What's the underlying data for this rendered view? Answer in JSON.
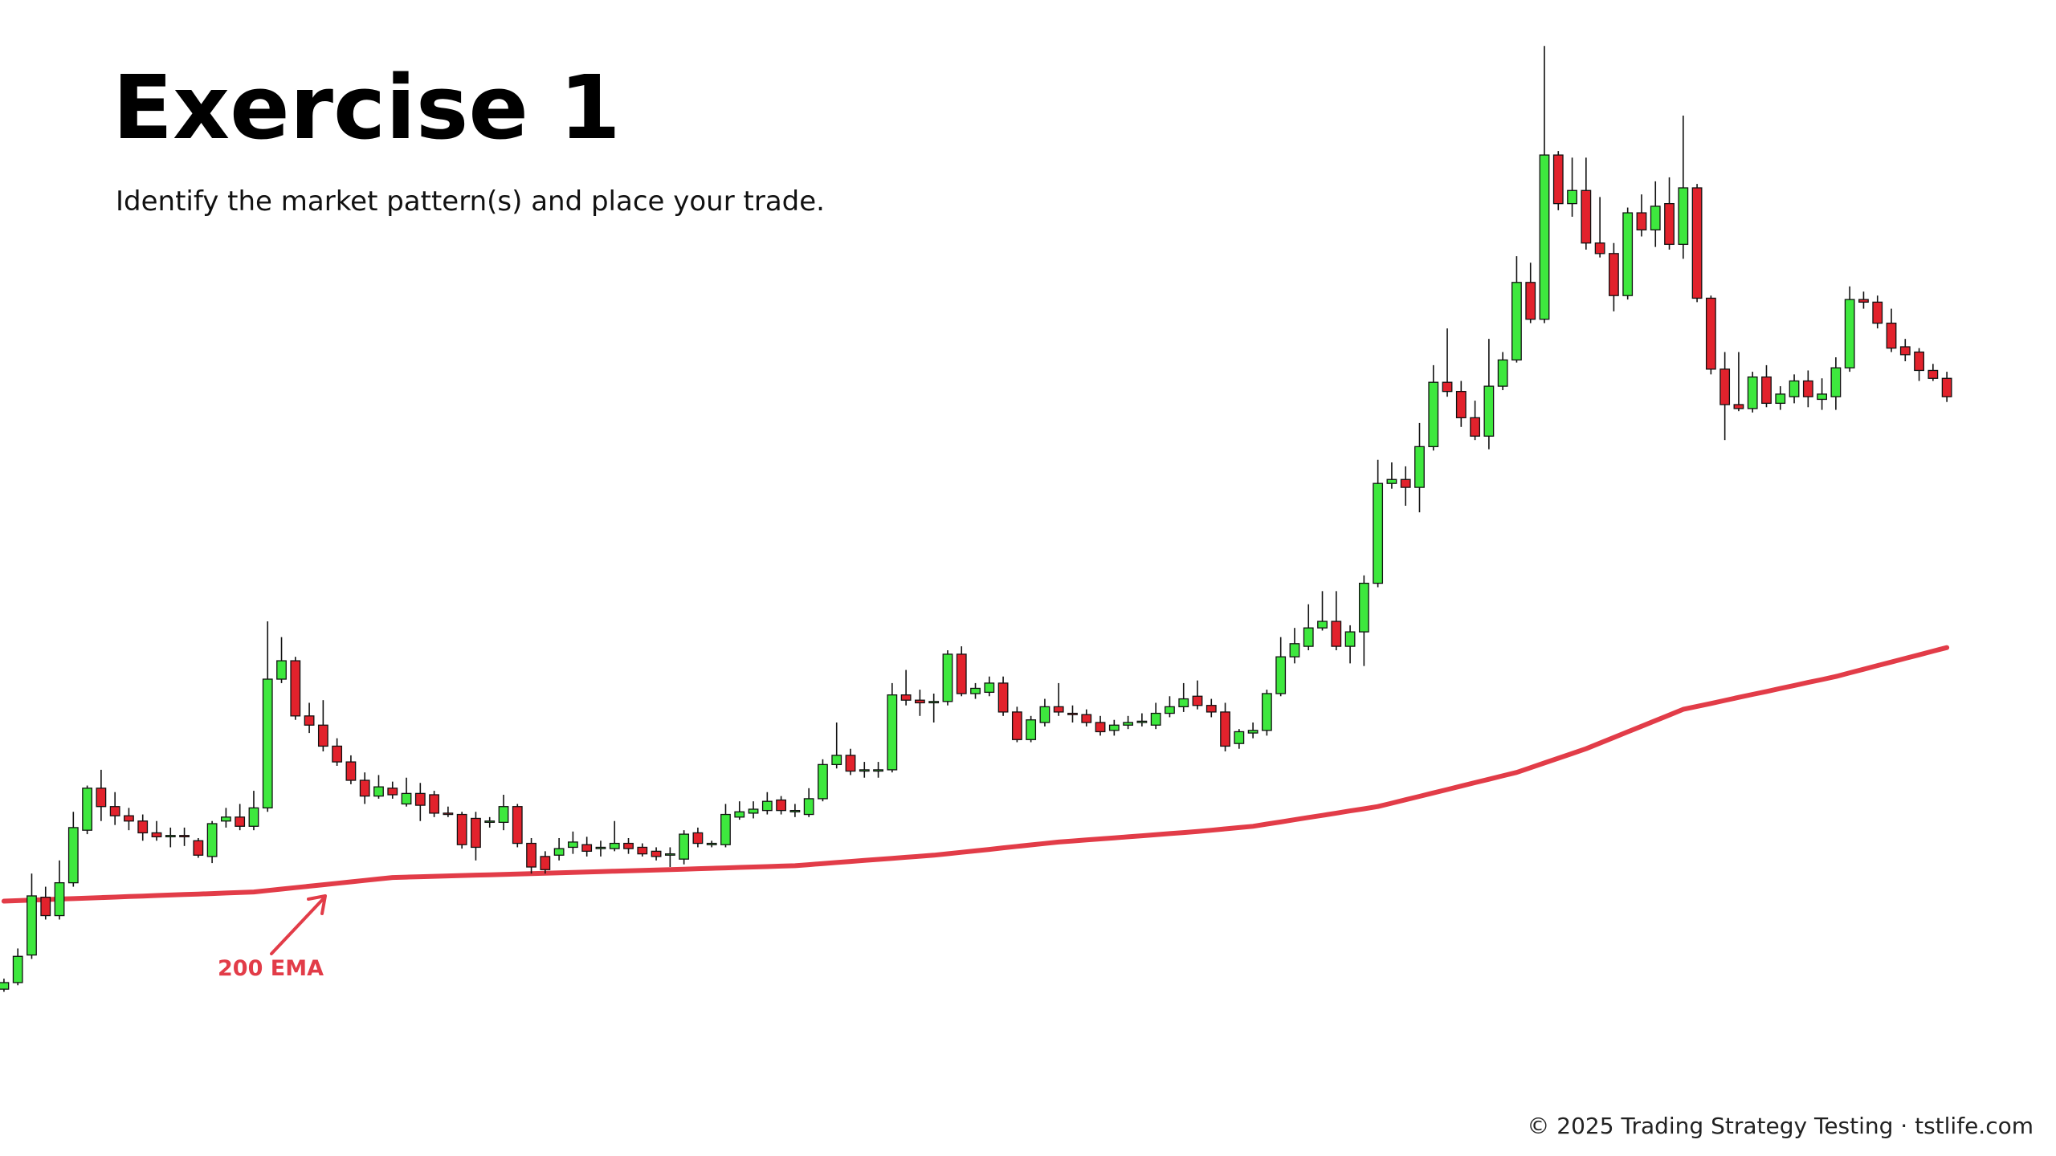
{
  "chart_data": {
    "type": "candlestick",
    "title": "Exercise 1",
    "subtitle": "Identify the market pattern(s) and place your trade.",
    "footer": "© 2025 Trading Strategy Testing · tstlife.com",
    "ylim": [
      0,
      880
    ],
    "up_color": "#3ee83e",
    "down_color": "#e2222c",
    "ohlc": [
      [
        127,
        135,
        125,
        132
      ],
      [
        132,
        158,
        130,
        152
      ],
      [
        153,
        215,
        150,
        198
      ],
      [
        197,
        205,
        180,
        183
      ],
      [
        183,
        225,
        180,
        208
      ],
      [
        208,
        262,
        205,
        250
      ],
      [
        248,
        282,
        245,
        280
      ],
      [
        280,
        294,
        255,
        266
      ],
      [
        266,
        277,
        252,
        259
      ],
      [
        259,
        265,
        248,
        255
      ],
      [
        255,
        260,
        240,
        246
      ],
      [
        246,
        255,
        240,
        243
      ],
      [
        243,
        250,
        235,
        244
      ],
      [
        244,
        250,
        236,
        243
      ],
      [
        240,
        242,
        227,
        229
      ],
      [
        228,
        255,
        223,
        253
      ],
      [
        255,
        265,
        250,
        258
      ],
      [
        258,
        268,
        248,
        251
      ],
      [
        251,
        278,
        248,
        265
      ],
      [
        265,
        407,
        262,
        363
      ],
      [
        363,
        395,
        360,
        377
      ],
      [
        377,
        380,
        332,
        335
      ],
      [
        335,
        345,
        322,
        328
      ],
      [
        328,
        347,
        308,
        312
      ],
      [
        312,
        318,
        297,
        300
      ],
      [
        300,
        305,
        283,
        286
      ],
      [
        286,
        292,
        268,
        274
      ],
      [
        274,
        290,
        272,
        281
      ],
      [
        280,
        285,
        272,
        275
      ],
      [
        268,
        288,
        266,
        276
      ],
      [
        276,
        284,
        255,
        267
      ],
      [
        275,
        278,
        258,
        261
      ],
      [
        261,
        266,
        258,
        260
      ],
      [
        260,
        262,
        234,
        237
      ],
      [
        257,
        262,
        225,
        235
      ],
      [
        254,
        258,
        250,
        255
      ],
      [
        254,
        275,
        248,
        266
      ],
      [
        266,
        268,
        235,
        238
      ],
      [
        238,
        242,
        215,
        220
      ],
      [
        228,
        232,
        215,
        218
      ],
      [
        229,
        242,
        225,
        234
      ],
      [
        235,
        247,
        230,
        239
      ],
      [
        237,
        243,
        228,
        232
      ],
      [
        234,
        240,
        228,
        235
      ],
      [
        234,
        255,
        232,
        238
      ],
      [
        238,
        242,
        230,
        234
      ],
      [
        235,
        238,
        228,
        230
      ],
      [
        232,
        235,
        225,
        228
      ],
      [
        229,
        235,
        220,
        230
      ],
      [
        226,
        248,
        222,
        245
      ],
      [
        246,
        250,
        235,
        238
      ],
      [
        237,
        240,
        235,
        238
      ],
      [
        237,
        268,
        235,
        260
      ],
      [
        258,
        270,
        256,
        262
      ],
      [
        261,
        270,
        257,
        264
      ],
      [
        263,
        277,
        260,
        270
      ],
      [
        271,
        274,
        260,
        263
      ],
      [
        262,
        268,
        258,
        263
      ],
      [
        260,
        280,
        258,
        272
      ],
      [
        272,
        302,
        270,
        298
      ],
      [
        298,
        330,
        295,
        305
      ],
      [
        305,
        310,
        290,
        293
      ],
      [
        293,
        300,
        288,
        294
      ],
      [
        293,
        300,
        288,
        294
      ],
      [
        294,
        360,
        292,
        351
      ],
      [
        351,
        370,
        343,
        347
      ],
      [
        347,
        355,
        335,
        345
      ],
      [
        345,
        352,
        330,
        346
      ],
      [
        346,
        385,
        343,
        382
      ],
      [
        382,
        388,
        350,
        352
      ],
      [
        352,
        360,
        348,
        356
      ],
      [
        353,
        365,
        350,
        360
      ],
      [
        360,
        365,
        335,
        338
      ],
      [
        338,
        342,
        315,
        317
      ],
      [
        317,
        335,
        315,
        332
      ],
      [
        330,
        348,
        327,
        342
      ],
      [
        342,
        360,
        335,
        338
      ],
      [
        337,
        343,
        330,
        336
      ],
      [
        336,
        340,
        327,
        330
      ],
      [
        330,
        335,
        320,
        323
      ],
      [
        324,
        332,
        320,
        328
      ],
      [
        328,
        335,
        325,
        330
      ],
      [
        330,
        337,
        327,
        331
      ],
      [
        328,
        345,
        325,
        337
      ],
      [
        337,
        350,
        334,
        342
      ],
      [
        342,
        360,
        338,
        348
      ],
      [
        350,
        362,
        340,
        343
      ],
      [
        343,
        348,
        334,
        338
      ],
      [
        338,
        345,
        308,
        312
      ],
      [
        314,
        325,
        310,
        323
      ],
      [
        322,
        330,
        318,
        324
      ],
      [
        324,
        355,
        320,
        352
      ],
      [
        352,
        395,
        350,
        380
      ],
      [
        380,
        402,
        375,
        390
      ],
      [
        388,
        420,
        385,
        402
      ],
      [
        402,
        430,
        400,
        407
      ],
      [
        407,
        430,
        385,
        388
      ],
      [
        388,
        404,
        375,
        399
      ],
      [
        399,
        442,
        373,
        436
      ],
      [
        436,
        530,
        433,
        512
      ],
      [
        512,
        528,
        508,
        515
      ],
      [
        515,
        525,
        495,
        509
      ],
      [
        509,
        558,
        490,
        540
      ],
      [
        540,
        602,
        537,
        589
      ],
      [
        589,
        630,
        578,
        582
      ],
      [
        582,
        590,
        555,
        562
      ],
      [
        562,
        575,
        545,
        548
      ],
      [
        548,
        622,
        538,
        586
      ],
      [
        586,
        612,
        583,
        606
      ],
      [
        606,
        685,
        604,
        665
      ],
      [
        665,
        680,
        634,
        637
      ],
      [
        637,
        845,
        634,
        762
      ],
      [
        762,
        765,
        720,
        725
      ],
      [
        725,
        760,
        715,
        735
      ],
      [
        735,
        760,
        690,
        695
      ],
      [
        695,
        730,
        684,
        687
      ],
      [
        687,
        695,
        643,
        655
      ],
      [
        655,
        722,
        652,
        718
      ],
      [
        718,
        732,
        700,
        705
      ],
      [
        705,
        742,
        692,
        723
      ],
      [
        725,
        745,
        690,
        694
      ],
      [
        694,
        792,
        683,
        737
      ],
      [
        737,
        740,
        650,
        653
      ],
      [
        653,
        655,
        595,
        599
      ],
      [
        599,
        612,
        545,
        572
      ],
      [
        572,
        612,
        567,
        569
      ],
      [
        569,
        597,
        566,
        593
      ],
      [
        593,
        602,
        570,
        573
      ],
      [
        573,
        586,
        568,
        580
      ],
      [
        578,
        595,
        573,
        590
      ],
      [
        590,
        598,
        570,
        578
      ],
      [
        576,
        592,
        568,
        580
      ],
      [
        578,
        608,
        568,
        600
      ],
      [
        600,
        662,
        597,
        652
      ],
      [
        652,
        658,
        645,
        650
      ],
      [
        650,
        655,
        630,
        634
      ],
      [
        634,
        645,
        612,
        615
      ],
      [
        616,
        622,
        605,
        610
      ],
      [
        612,
        615,
        590,
        598
      ],
      [
        598,
        603,
        590,
        592
      ],
      [
        592,
        597,
        574,
        578
      ]
    ],
    "ema": {
      "label": "200 EMA",
      "color": "#e23c48",
      "values": [
        194,
        194.4,
        194.8,
        195.2,
        195.6,
        195.9,
        196.3,
        196.7,
        197.1,
        197.5,
        197.9,
        198.3,
        198.7,
        199.1,
        199.4,
        199.8,
        200.2,
        200.6,
        201,
        202.1,
        203.2,
        204.3,
        205.4,
        206.5,
        207.6,
        208.7,
        209.8,
        210.9,
        212,
        212.3,
        212.6,
        212.9,
        213.2,
        213.5,
        213.8,
        214.1,
        214.4,
        214.7,
        215,
        215.3,
        215.6,
        215.9,
        216.2,
        216.5,
        216.8,
        217.1,
        217.4,
        217.7,
        218,
        218.3,
        218.7,
        219,
        219.3,
        219.7,
        220,
        220.3,
        220.7,
        221,
        221.8,
        222.6,
        223.4,
        224.2,
        225,
        225.8,
        226.6,
        227.4,
        228.2,
        229,
        230.1,
        231.2,
        232.3,
        233.4,
        234.6,
        235.7,
        236.8,
        237.9,
        239,
        239.8,
        240.6,
        241.4,
        242.2,
        243,
        243.8,
        244.6,
        245.4,
        246.2,
        247,
        248,
        249,
        250,
        251,
        252.7,
        254.3,
        256,
        257.7,
        259.3,
        261,
        262.7,
        264.3,
        266,
        268.6,
        271.2,
        273.8,
        276.4,
        279,
        281.6,
        284.2,
        286.8,
        289.4,
        292,
        295.6,
        299.2,
        302.8,
        306.4,
        310,
        314.3,
        318.6,
        322.9,
        327.1,
        331.4,
        335.7,
        340,
        342.3,
        344.5,
        346.8,
        349.1,
        351.4,
        353.6,
        355.9,
        358.2,
        360.5,
        362.7,
        365,
        367.8,
        370.5,
        373.3,
        376,
        378.8,
        381.5,
        384.3,
        387
      ]
    }
  }
}
